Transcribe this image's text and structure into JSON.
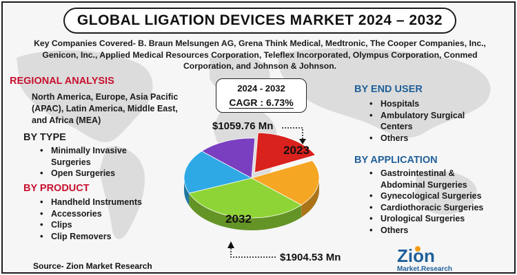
{
  "title": "GLOBAL LIGATION DEVICES MARKET 2024 – 2032",
  "companies_lines": [
    "Key Companies Covered- B. Braun Melsungen AG, Grena Think Medical, Medtronic, The Cooper Companies, Inc.,",
    "Genicon, Inc., Applied Medical Resources Corporation, Teleflex Incorporated, Olympus Corporation, Conmed",
    "Corporation, and Johnson & Johnson."
  ],
  "regional": {
    "heading": "REGIONAL ANALYSIS",
    "lines": [
      "North America, Europe, Asia Pacific",
      "(APAC), Latin America, Middle East,",
      "and Africa (MEA)"
    ]
  },
  "by_type": {
    "heading": "BY TYPE",
    "items": [
      "Minimally Invasive",
      "Surgeries",
      "Open Surgeries"
    ]
  },
  "by_product": {
    "heading": "BY PRODUCT",
    "items": [
      "Handheld Instruments",
      "Accessories",
      "Clips",
      "Clip Removers"
    ]
  },
  "by_end_user": {
    "heading": "BY END USER",
    "items": [
      "Hospitals",
      "Ambulatory Surgical",
      "Centers",
      "Others"
    ]
  },
  "by_application": {
    "heading": "BY APPLICATION",
    "items": [
      "Gastrointestinal &",
      "Abdominal Surgeries",
      "Gynecological Surgeries",
      "Cardiothoracic Surgeries",
      "Urological Surgeries",
      "Others"
    ]
  },
  "source": "Source- Zion Market Research",
  "logo": {
    "main": "Zion",
    "sub": "Market.Research"
  },
  "chart_data": {
    "type": "pie",
    "year_range": "2024 - 2032",
    "cagr": "CAGR : 6.73%",
    "value_2023": "$1059.76 Mn",
    "value_2032": "$1904.53 Mn",
    "label_2023": "2023",
    "label_2032": "2032",
    "slices": [
      {
        "color": "#d9211d",
        "share": 0.17
      },
      {
        "color": "#f5a623",
        "share": 0.19
      },
      {
        "color": "#8fd436",
        "share": 0.32
      },
      {
        "color": "#2fa9e6",
        "share": 0.18
      },
      {
        "color": "#7a3fc0",
        "share": 0.14
      }
    ]
  },
  "colors": {
    "red_heading": "#c8102e",
    "blue_heading": "#1f5f99",
    "logo_blue": "#1f5f99",
    "logo_orange": "#f39c12"
  }
}
